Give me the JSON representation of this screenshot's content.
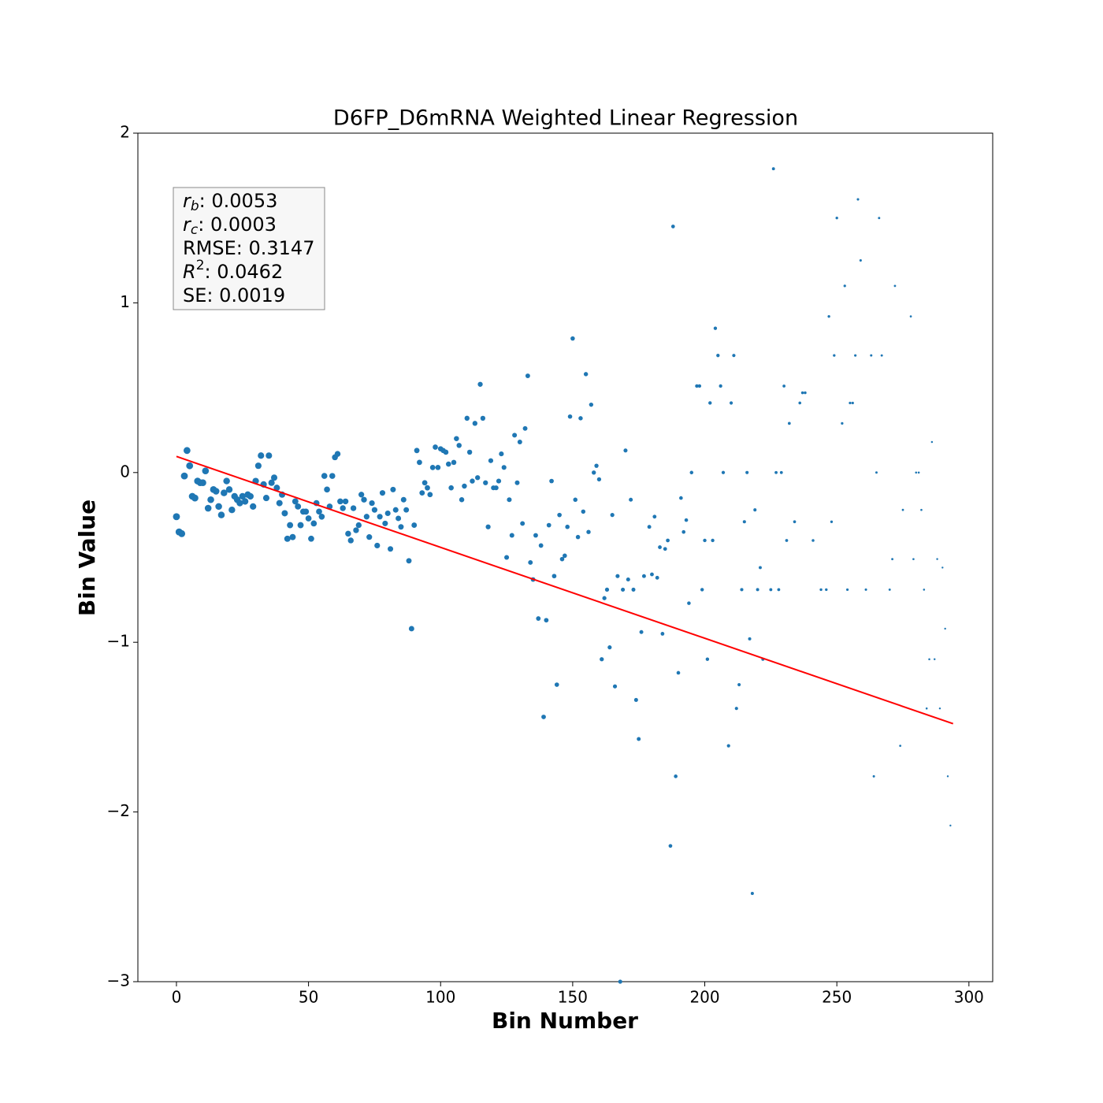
{
  "chart_data": {
    "type": "scatter",
    "title": "D6FP_D6mRNA Weighted Linear Regression",
    "x_label": "Bin Number",
    "y_label": "Bin Value",
    "color": "#1f77b4",
    "xlim": [
      -14.6,
      309
    ],
    "ylim": [
      -3,
      2
    ],
    "xticks": [
      0,
      50,
      100,
      150,
      200,
      250,
      300
    ],
    "yticks": [
      {
        "value": -3,
        "label": "−3"
      },
      {
        "value": -2,
        "label": "−2"
      },
      {
        "value": -1,
        "label": "−1"
      },
      0,
      1,
      2
    ],
    "x": [
      0,
      1,
      2,
      3,
      4,
      5,
      6,
      7,
      8,
      9,
      10,
      11,
      12,
      13,
      14,
      15,
      16,
      17,
      18,
      19,
      20,
      21,
      22,
      23,
      24,
      25,
      26,
      27,
      28,
      29,
      30,
      31,
      32,
      33,
      34,
      35,
      36,
      37,
      38,
      39,
      40,
      41,
      42,
      43,
      44,
      45,
      46,
      47,
      48,
      49,
      50,
      51,
      52,
      53,
      54,
      55,
      56,
      57,
      58,
      59,
      60,
      61,
      62,
      63,
      64,
      65,
      66,
      67,
      68,
      69,
      70,
      71,
      72,
      73,
      74,
      75,
      76,
      77,
      78,
      79,
      80,
      81,
      82,
      83,
      84,
      85,
      86,
      87,
      88,
      89,
      90,
      91,
      92,
      93,
      94,
      95,
      96,
      97,
      98,
      99,
      100,
      101,
      102,
      103,
      104,
      105,
      106,
      107,
      108,
      109,
      110,
      111,
      112,
      113,
      114,
      115,
      116,
      117,
      118,
      119,
      120,
      121,
      122,
      123,
      124,
      125,
      126,
      127,
      128,
      129,
      130,
      131,
      132,
      133,
      134,
      135,
      136,
      137,
      138,
      139,
      140,
      141,
      142,
      143,
      144,
      145,
      146,
      147,
      148,
      149,
      150,
      151,
      152,
      153,
      154,
      155,
      156,
      157,
      158,
      159,
      160,
      161,
      162,
      163,
      164,
      165,
      166,
      167,
      168,
      169,
      170,
      171,
      172,
      173,
      174,
      175,
      176,
      177,
      179,
      180,
      181,
      182,
      183,
      184,
      185,
      186,
      187,
      188,
      189,
      190,
      191,
      192,
      193,
      194,
      195,
      197,
      198,
      199,
      200,
      201,
      202,
      203,
      204,
      205,
      206,
      207,
      209,
      210,
      211,
      212,
      213,
      214,
      215,
      216,
      217,
      218,
      219,
      220,
      221,
      222,
      225,
      226,
      227,
      228,
      229,
      230,
      231,
      232,
      234,
      236,
      237,
      238,
      241,
      244,
      246,
      247,
      248,
      249,
      250,
      252,
      253,
      254,
      255,
      256,
      257,
      258,
      259,
      261,
      263,
      264,
      265,
      266,
      267,
      270,
      271,
      272,
      274,
      275,
      278,
      279,
      280,
      281,
      282,
      283,
      284,
      285,
      286,
      287,
      288,
      289,
      290,
      291,
      292,
      293
    ],
    "values": [
      -0.26,
      -0.35,
      -0.36,
      -0.02,
      0.13,
      0.04,
      -0.14,
      -0.15,
      -0.05,
      -0.06,
      -0.06,
      0.01,
      -0.21,
      -0.16,
      -0.1,
      -0.11,
      -0.2,
      -0.25,
      -0.12,
      -0.05,
      -0.1,
      -0.22,
      -0.14,
      -0.16,
      -0.18,
      -0.14,
      -0.17,
      -0.13,
      -0.14,
      -0.2,
      -0.05,
      0.04,
      0.1,
      -0.07,
      -0.15,
      0.1,
      -0.06,
      -0.03,
      -0.09,
      -0.18,
      -0.13,
      -0.24,
      -0.39,
      -0.31,
      -0.38,
      -0.17,
      -0.2,
      -0.31,
      -0.23,
      -0.23,
      -0.27,
      -0.39,
      -0.3,
      -0.18,
      -0.23,
      -0.26,
      -0.02,
      -0.1,
      -0.2,
      -0.02,
      0.09,
      0.11,
      -0.17,
      -0.21,
      -0.17,
      -0.36,
      -0.4,
      -0.21,
      -0.34,
      -0.31,
      -0.13,
      -0.16,
      -0.26,
      -0.38,
      -0.18,
      -0.22,
      -0.43,
      -0.26,
      -0.12,
      -0.3,
      -0.24,
      -0.45,
      -0.1,
      -0.22,
      -0.27,
      -0.32,
      -0.16,
      -0.22,
      -0.52,
      -0.92,
      -0.31,
      0.13,
      0.06,
      -0.12,
      -0.06,
      -0.09,
      -0.13,
      0.03,
      0.15,
      0.03,
      0.14,
      0.13,
      0.12,
      0.05,
      -0.09,
      0.06,
      0.2,
      0.16,
      -0.16,
      -0.08,
      0.32,
      0.12,
      -0.05,
      0.29,
      -0.03,
      0.52,
      0.32,
      -0.06,
      -0.32,
      0.07,
      -0.09,
      -0.09,
      -0.05,
      0.11,
      0.03,
      -0.5,
      -0.16,
      -0.37,
      0.22,
      -0.06,
      0.18,
      -0.3,
      0.26,
      0.57,
      -0.53,
      -0.63,
      -0.37,
      -0.86,
      -0.43,
      -1.44,
      -0.87,
      -0.31,
      -0.05,
      -0.61,
      -1.25,
      -0.25,
      -0.51,
      -0.49,
      -0.32,
      0.33,
      0.79,
      -0.16,
      -0.38,
      0.32,
      -0.23,
      0.58,
      -0.35,
      0.4,
      0,
      0.04,
      -0.04,
      -1.1,
      -0.74,
      -0.69,
      -1.03,
      -0.25,
      -1.26,
      -0.61,
      -3,
      -0.69,
      0.13,
      -0.63,
      -0.16,
      -0.69,
      -1.34,
      -1.57,
      -0.94,
      -0.61,
      -0.32,
      -0.6,
      -0.26,
      -0.62,
      -0.44,
      -0.95,
      -0.45,
      -0.4,
      -2.2,
      1.45,
      -1.79,
      -1.18,
      -0.15,
      -0.35,
      -0.28,
      -0.77,
      0,
      0.51,
      0.51,
      -0.69,
      -0.4,
      -1.1,
      0.41,
      -0.4,
      0.85,
      0.69,
      0.51,
      0,
      -1.61,
      0.41,
      0.69,
      -1.39,
      -1.25,
      -0.69,
      -0.29,
      0,
      -0.98,
      -2.48,
      -0.22,
      -0.69,
      -0.56,
      -1.1,
      -0.69,
      1.79,
      0,
      -0.69,
      0,
      0.51,
      -0.4,
      0.29,
      -0.29,
      0.41,
      0.47,
      0.47,
      -0.4,
      -0.69,
      -0.69,
      0.92,
      -0.29,
      0.69,
      1.5,
      0.29,
      1.1,
      -0.69,
      0.41,
      0.41,
      0.69,
      1.61,
      1.25,
      -0.69,
      0.69,
      -1.79,
      0,
      1.5,
      0.69,
      -0.69,
      -0.51,
      1.1,
      -1.61,
      -0.22,
      0.92,
      -0.51,
      0,
      0,
      -0.22,
      -0.69,
      -1.39,
      -1.1,
      0.18,
      -1.1,
      -0.51,
      -1.39,
      -0.56,
      -0.92,
      -1.79,
      -2.08
    ],
    "fit": {
      "color": "#ff0000",
      "x": [
        0,
        294
      ],
      "values": [
        0.095,
        -1.48
      ]
    },
    "annotations": [
      {
        "italic": "r",
        "sub": "b",
        "text": ": 0.0053"
      },
      {
        "italic": "r",
        "sub": "c",
        "text": ": 0.0003"
      },
      {
        "text": "RMSE: 0.3147"
      },
      {
        "italic": "R",
        "sup": "2",
        "text": ": 0.0462"
      },
      {
        "text": "SE: 0.0019"
      }
    ]
  }
}
